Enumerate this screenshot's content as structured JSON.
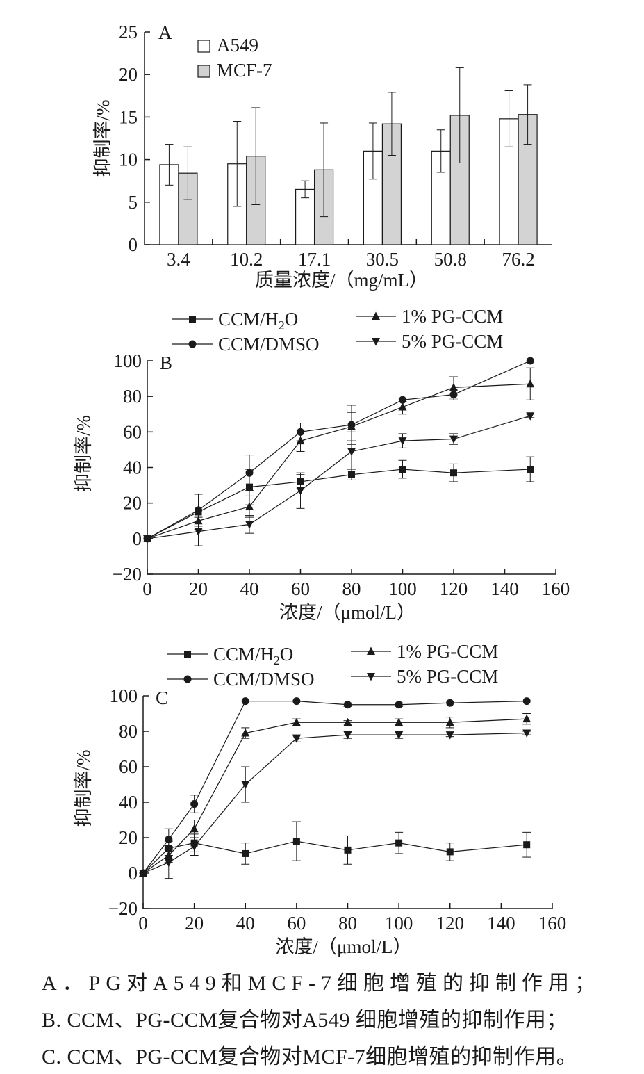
{
  "chart_data": [
    {
      "type": "bar",
      "panel_label": "A",
      "categories": [
        "3.4",
        "10.2",
        "17.1",
        "30.5",
        "50.8",
        "76.2"
      ],
      "series": [
        {
          "name": "A549",
          "values": [
            9.4,
            9.5,
            6.5,
            11.0,
            11.0,
            14.8
          ],
          "errors": [
            2.4,
            5.0,
            1.0,
            3.3,
            2.5,
            3.3
          ],
          "color": "#ffffff"
        },
        {
          "name": "MCF-7",
          "values": [
            8.4,
            10.4,
            8.8,
            14.2,
            15.2,
            15.3
          ],
          "errors": [
            3.1,
            5.7,
            5.5,
            3.7,
            5.6,
            3.5
          ],
          "color": "#d3d3d3"
        }
      ],
      "xlabel": "质量浓度/（mg/mL）",
      "ylabel": "抑制率/%",
      "ylim": [
        0,
        25
      ],
      "yticks": [
        0,
        5,
        10,
        15,
        20,
        25
      ],
      "legend": "top-left",
      "grid": false
    },
    {
      "type": "line",
      "panel_label": "B",
      "x": [
        0,
        20,
        40,
        60,
        80,
        100,
        120,
        150
      ],
      "series": [
        {
          "name": "CCM/H2O",
          "marker": "square",
          "values": [
            0,
            15,
            29,
            32,
            36,
            39,
            37,
            39
          ],
          "errors": [
            0,
            10,
            10,
            4,
            3,
            5,
            5,
            7
          ]
        },
        {
          "name": "CCM/DMSO",
          "marker": "circle",
          "values": [
            0,
            16,
            37,
            60,
            64,
            78,
            81,
            100
          ],
          "errors": [
            0,
            9,
            10,
            5,
            11,
            1,
            3,
            0
          ]
        },
        {
          "name": "1% PG-CCM",
          "marker": "triangle-up",
          "values": [
            0,
            10,
            18,
            55,
            63,
            74,
            85,
            87
          ],
          "errors": [
            0,
            5,
            6,
            6,
            8,
            4,
            6,
            9
          ]
        },
        {
          "name": "5% PG-CCM",
          "marker": "triangle-down",
          "values": [
            0,
            4,
            8,
            27,
            49,
            55,
            56,
            69
          ],
          "errors": [
            0,
            8,
            5,
            10,
            11,
            4,
            3,
            1
          ]
        }
      ],
      "xlabel": "浓度/（μmol/L）",
      "ylabel": "抑制率/%",
      "xlim": [
        0,
        160
      ],
      "ylim": [
        -20,
        100
      ],
      "xticks": [
        0,
        20,
        40,
        60,
        80,
        100,
        120,
        140,
        160
      ],
      "yticks": [
        -20,
        0,
        20,
        40,
        60,
        80,
        100
      ],
      "legend": "top",
      "grid": false
    },
    {
      "type": "line",
      "panel_label": "C",
      "x": [
        0,
        10,
        20,
        40,
        60,
        80,
        100,
        120,
        150
      ],
      "series": [
        {
          "name": "CCM/H2O",
          "marker": "square",
          "values": [
            0,
            14,
            17,
            11,
            18,
            13,
            17,
            12,
            16
          ],
          "errors": [
            0,
            4,
            5,
            6,
            11,
            8,
            6,
            5,
            7
          ]
        },
        {
          "name": "CCM/DMSO",
          "marker": "circle",
          "values": [
            0,
            19,
            39,
            97,
            97,
            95,
            95,
            96,
            97
          ],
          "errors": [
            0,
            6,
            5,
            0,
            0,
            1,
            1,
            0,
            0
          ]
        },
        {
          "name": "1% PG-CCM",
          "marker": "triangle-up",
          "values": [
            0,
            10,
            25,
            79,
            85,
            85,
            85,
            85,
            87
          ],
          "errors": [
            0,
            4,
            5,
            3,
            2,
            1,
            2,
            3,
            3
          ]
        },
        {
          "name": "5% PG-CCM",
          "marker": "triangle-down",
          "values": [
            0,
            6,
            15,
            50,
            76,
            78,
            78,
            78,
            79
          ],
          "errors": [
            0,
            9,
            5,
            10,
            2,
            2,
            2,
            1,
            1
          ]
        }
      ],
      "xlabel": "浓度/（μmol/L）",
      "ylabel": "抑制率/%",
      "xlim": [
        0,
        160
      ],
      "ylim": [
        -20,
        100
      ],
      "xticks": [
        0,
        20,
        40,
        60,
        80,
        100,
        120,
        140,
        160
      ],
      "yticks": [
        -20,
        0,
        20,
        40,
        60,
        80,
        100
      ],
      "legend": "top",
      "grid": false
    }
  ],
  "captions": {
    "a": "A．PG对A549和MCF-7细胞增殖的抑制作用；",
    "b": "B. CCM、PG-CCM复合物对A549 细胞增殖的抑制作用；",
    "c": "C. CCM、PG-CCM复合物对MCF-7细胞增殖的抑制作用。"
  }
}
